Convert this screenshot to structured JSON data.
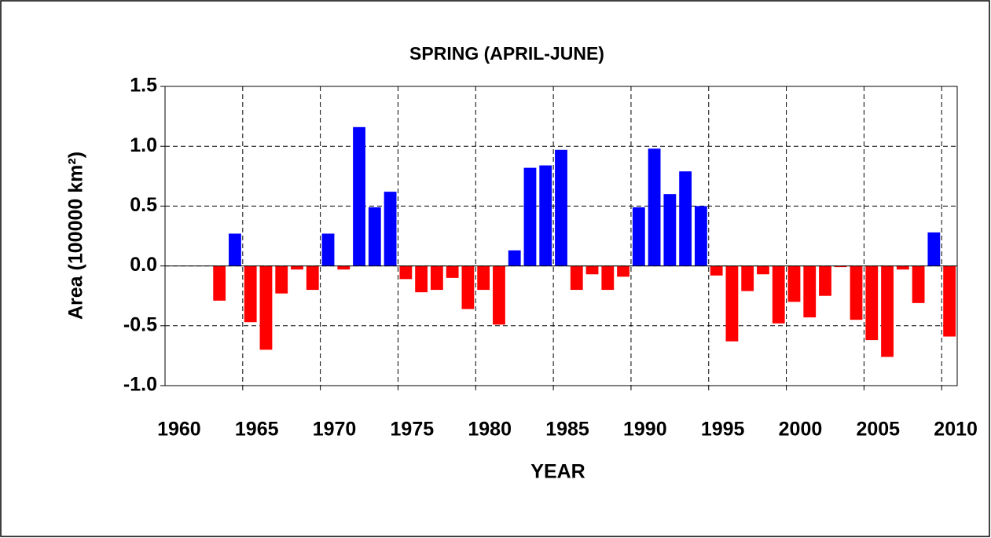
{
  "chart_data": {
    "type": "bar",
    "title": "SPRING (APRIL-JUNE)",
    "x_label": "YEAR",
    "y_label": "Area (100000 km²)",
    "categories": [
      "1960",
      null,
      null,
      null,
      null,
      "1965",
      null,
      null,
      null,
      null,
      "1970",
      null,
      null,
      null,
      null,
      "1975",
      null,
      null,
      null,
      null,
      "1980",
      null,
      null,
      null,
      null,
      "1985",
      null,
      null,
      null,
      null,
      "1990",
      null,
      null,
      null,
      null,
      "1995",
      null,
      null,
      null,
      null,
      "2000",
      null,
      null,
      null,
      null,
      "2005",
      null,
      null,
      null,
      null,
      "2010"
    ],
    "values": [
      null,
      null,
      null,
      -0.29,
      0.27,
      -0.47,
      -0.7,
      -0.23,
      -0.03,
      -0.2,
      0.27,
      -0.03,
      1.16,
      0.49,
      0.62,
      -0.11,
      -0.22,
      -0.2,
      -0.1,
      -0.36,
      -0.2,
      -0.49,
      0.13,
      0.82,
      0.84,
      0.97,
      -0.2,
      -0.07,
      -0.2,
      -0.09,
      0.49,
      0.98,
      0.6,
      0.79,
      0.5,
      -0.08,
      -0.63,
      -0.21,
      -0.07,
      -0.48,
      -0.3,
      -0.43,
      -0.25,
      -0.01,
      -0.45,
      -0.62,
      -0.76,
      -0.03,
      -0.31,
      0.28,
      -0.59
    ],
    "color_positive": "#0000ff",
    "color_negative": "#ff0000",
    "ylim": [
      -1.0,
      1.5
    ],
    "yticks": [
      {
        "value": -1.0,
        "label": "-1.0"
      },
      -0.5,
      {
        "value": 0.0,
        "label": "0.0"
      },
      0.5,
      {
        "value": 1.0,
        "label": "1.0"
      },
      1.5
    ],
    "grid": true
  }
}
